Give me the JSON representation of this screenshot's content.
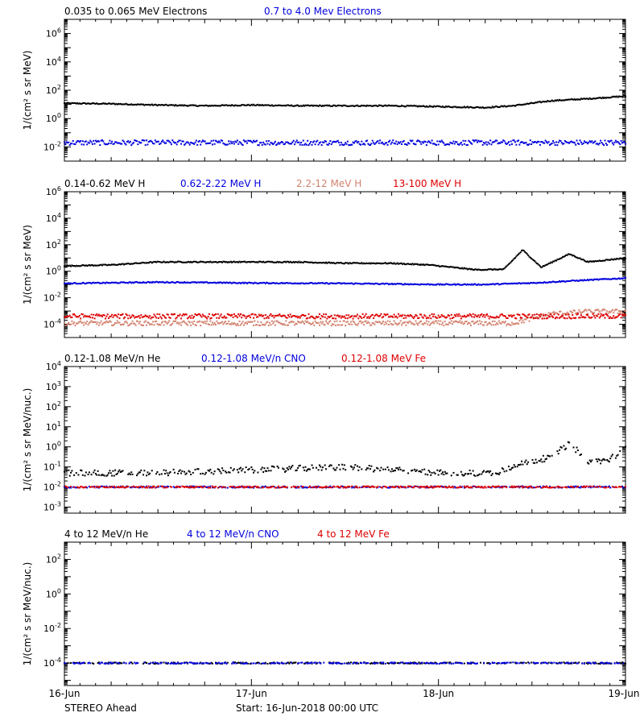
{
  "footer": {
    "spacecraft": "STEREO Ahead",
    "start": "Start: 16-Jun-2018 00:00 UTC"
  },
  "colors": {
    "black": "#000000",
    "blue": "#0000dd",
    "tan": "#d2826e",
    "red": "#dd0000"
  },
  "chart_data": [
    {
      "type": "scatter",
      "scale": "log",
      "ylim": [
        0.001,
        10000000
      ],
      "ylabel": "1/(cm² s sr MeV)",
      "yticks": [
        {
          "value": 1000000,
          "label": "10^6"
        },
        {
          "value": 10000,
          "label": "10^4"
        },
        {
          "value": 100,
          "label": "10^2"
        },
        {
          "value": 1,
          "label": "10^0"
        },
        {
          "value": 0.01,
          "label": "10^-2"
        }
      ],
      "xlim": [
        0,
        3
      ],
      "xticks": [
        {
          "value": 0,
          "label": "16-Jun"
        },
        {
          "value": 1,
          "label": "17-Jun"
        },
        {
          "value": 2,
          "label": "18-Jun"
        },
        {
          "value": 3,
          "label": "19-Jun"
        }
      ],
      "series": [
        {
          "name": "0.035 to 0.065 MeV Electrons",
          "color": "#000000",
          "x": [
            0,
            0.25,
            0.5,
            0.75,
            1.0,
            1.25,
            1.5,
            1.75,
            2.0,
            2.25,
            2.4,
            2.6,
            2.8,
            3.0
          ],
          "y": [
            12,
            11,
            9,
            8,
            9,
            8,
            8,
            8,
            7,
            6,
            8,
            18,
            25,
            38
          ]
        },
        {
          "name": "0.7 to 4.0 Mev Electrons",
          "color": "#0000dd",
          "x": [
            0,
            0.5,
            1.0,
            1.5,
            2.0,
            2.5,
            3.0
          ],
          "y": [
            0.02,
            0.02,
            0.02,
            0.02,
            0.02,
            0.02,
            0.02
          ]
        }
      ]
    },
    {
      "type": "scatter",
      "scale": "log",
      "ylim": [
        1e-05,
        1000000
      ],
      "ylabel": "1/(cm² s sr MeV)",
      "yticks": [
        {
          "value": 1000000,
          "label": "10^6"
        },
        {
          "value": 10000,
          "label": "10^4"
        },
        {
          "value": 100,
          "label": "10^2"
        },
        {
          "value": 1,
          "label": "10^0"
        },
        {
          "value": 0.01,
          "label": "10^-2"
        },
        {
          "value": 0.0001,
          "label": "10^-4"
        }
      ],
      "xlim": [
        0,
        3
      ],
      "series": [
        {
          "name": "0.14-0.62 MeV H",
          "color": "#000000",
          "x": [
            0,
            0.25,
            0.5,
            0.75,
            1.0,
            1.25,
            1.5,
            1.75,
            1.95,
            2.2,
            2.35,
            2.45,
            2.55,
            2.7,
            2.8,
            3.0
          ],
          "y": [
            2.5,
            3,
            5,
            5,
            5,
            5,
            4,
            4,
            3,
            1.3,
            1.4,
            40,
            2,
            20,
            5,
            10
          ]
        },
        {
          "name": "0.62-2.22 MeV H",
          "color": "#0000dd",
          "x": [
            0,
            0.5,
            1.0,
            1.5,
            2.0,
            2.25,
            2.5,
            2.75,
            3.0
          ],
          "y": [
            0.12,
            0.15,
            0.13,
            0.12,
            0.1,
            0.1,
            0.13,
            0.2,
            0.3
          ]
        },
        {
          "name": "2.2-12 MeV H",
          "color": "#d2826e",
          "x": [
            0,
            0.5,
            1.0,
            1.5,
            2.0,
            2.4,
            2.6,
            2.8,
            3.0
          ],
          "y": [
            0.00012,
            0.00012,
            0.00012,
            0.00012,
            0.00012,
            0.00012,
            0.0006,
            0.0009,
            0.0009
          ]
        },
        {
          "name": "13-100 MeV H",
          "color": "#dd0000",
          "x": [
            0,
            0.5,
            1.0,
            1.5,
            2.0,
            2.5,
            3.0
          ],
          "y": [
            0.0004,
            0.0004,
            0.0004,
            0.0004,
            0.0004,
            0.0004,
            0.0004
          ]
        }
      ]
    },
    {
      "type": "scatter",
      "scale": "log",
      "ylim": [
        0.0005,
        10000
      ],
      "ylabel": "1/(cm² s sr MeV/nuc.)",
      "yticks": [
        {
          "value": 10000,
          "label": "10^4"
        },
        {
          "value": 1000,
          "label": "10^3"
        },
        {
          "value": 100,
          "label": "10^2"
        },
        {
          "value": 10,
          "label": "10^1"
        },
        {
          "value": 1,
          "label": "10^0"
        },
        {
          "value": 0.1,
          "label": "10^-1"
        },
        {
          "value": 0.01,
          "label": "10^-2"
        },
        {
          "value": 0.001,
          "label": "10^-3"
        }
      ],
      "xlim": [
        0,
        3
      ],
      "series": [
        {
          "name": "0.12-1.08 MeV/n He",
          "color": "#000000",
          "x": [
            0,
            0.5,
            1.0,
            1.5,
            2.0,
            2.3,
            2.5,
            2.6,
            2.7,
            2.8,
            2.9,
            3.0
          ],
          "y": [
            0.05,
            0.05,
            0.07,
            0.1,
            0.05,
            0.05,
            0.2,
            0.3,
            1.5,
            0.2,
            0.2,
            0.8
          ]
        },
        {
          "name": "0.12-1.08 MeV/n CNO",
          "color": "#0000dd",
          "x": [
            0.1,
            0.6,
            1.2,
            1.8,
            2.4,
            2.8,
            3.0
          ],
          "y": [
            0.01,
            0.01,
            0.01,
            0.01,
            0.01,
            0.01,
            0.01
          ]
        },
        {
          "name": "0.12-1.08 MeV Fe",
          "color": "#dd0000",
          "x": [
            0.4,
            1.1,
            1.6,
            2.3,
            2.9
          ],
          "y": [
            0.01,
            0.01,
            0.01,
            0.01,
            0.01
          ]
        }
      ]
    },
    {
      "type": "scatter",
      "scale": "log",
      "ylim": [
        5e-06,
        1000
      ],
      "ylabel": "1/(cm² s sr MeV/nuc.)",
      "yticks": [
        {
          "value": 100,
          "label": "10^2"
        },
        {
          "value": 1,
          "label": "10^0"
        },
        {
          "value": 0.01,
          "label": "10^-2"
        },
        {
          "value": 0.0001,
          "label": "10^-4"
        }
      ],
      "xlim": [
        0,
        3
      ],
      "series": [
        {
          "name": "4 to 12 MeV/n He",
          "color": "#000000",
          "x": [
            0,
            0.5,
            1.0,
            1.5,
            2.0,
            2.5,
            3.0
          ],
          "y": [
            0.0001,
            0.0001,
            0.0001,
            0.0001,
            0.0001,
            0.0001,
            0.0001
          ]
        },
        {
          "name": "4 to 12 MeV/n CNO",
          "color": "#0000dd",
          "x": [
            0,
            1.0,
            2.0,
            3.0
          ],
          "y": [
            0.0001,
            0.0001,
            0.0001,
            0.0001
          ]
        },
        {
          "name": "4 to 12 MeV Fe",
          "color": "#dd0000",
          "x": [],
          "y": []
        }
      ]
    }
  ]
}
